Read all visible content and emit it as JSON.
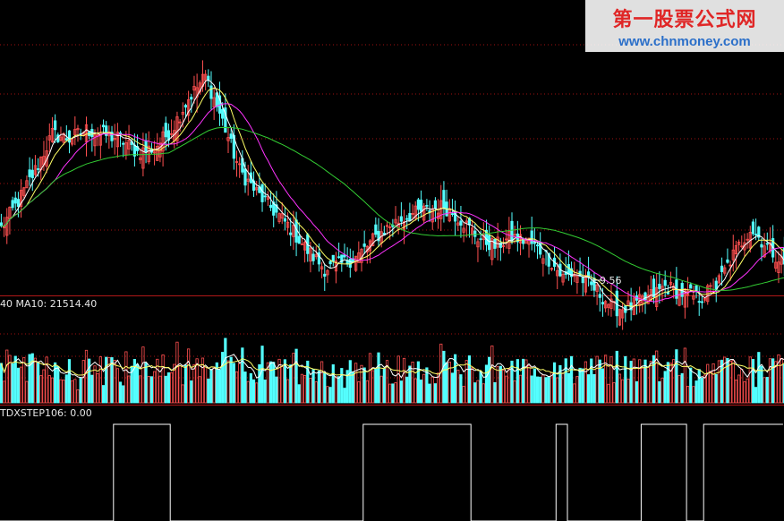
{
  "colors": {
    "up": "#ff5050",
    "down": "#54ffff",
    "ma_white": "#ffffff",
    "ma_yellow": "#ffff66",
    "ma_magenta": "#ff33ff",
    "ma_green": "#33cc33",
    "grid": "#a01010"
  },
  "price_panel": {
    "low_marker_label": "9.56"
  },
  "volume_panel": {
    "header": "40  MA10: 21514.40"
  },
  "step_panel": {
    "header": "TDXSTEP106: 0.00"
  },
  "watermark": {
    "title": "第一股票公式网",
    "url": "www.chnmoney.com"
  },
  "chart_data": {
    "type": "candlestick",
    "price_axis": {
      "ylim": [
        9.2,
        15.2
      ],
      "grid": true
    },
    "volume_axis": {
      "ylim": [
        0,
        60000
      ],
      "grid": true
    },
    "anchors": [
      [
        0,
        10.5
      ],
      [
        6,
        11.1
      ],
      [
        12,
        11.8
      ],
      [
        18,
        12.6
      ],
      [
        24,
        12.5
      ],
      [
        30,
        12.7
      ],
      [
        36,
        12.6
      ],
      [
        42,
        12.5
      ],
      [
        48,
        12.2
      ],
      [
        54,
        12.3
      ],
      [
        60,
        12.7
      ],
      [
        66,
        13.4
      ],
      [
        72,
        13.9
      ],
      [
        78,
        12.9
      ],
      [
        84,
        11.8
      ],
      [
        90,
        11.3
      ],
      [
        96,
        10.9
      ],
      [
        102,
        10.5
      ],
      [
        108,
        10.0
      ],
      [
        114,
        9.6
      ],
      [
        120,
        9.7
      ],
      [
        126,
        9.9
      ],
      [
        132,
        10.3
      ],
      [
        138,
        10.6
      ],
      [
        144,
        10.8
      ],
      [
        150,
        10.9
      ],
      [
        156,
        11.0
      ],
      [
        162,
        10.7
      ],
      [
        168,
        10.3
      ],
      [
        174,
        10.1
      ],
      [
        180,
        10.3
      ],
      [
        186,
        10.2
      ],
      [
        192,
        9.9
      ],
      [
        198,
        9.4
      ],
      [
        202,
        9.5
      ],
      [
        206,
        9.3
      ],
      [
        210,
        9.1
      ],
      [
        216,
        8.7
      ],
      [
        222,
        8.75
      ],
      [
        228,
        8.95
      ],
      [
        234,
        9.2
      ],
      [
        240,
        9.05
      ],
      [
        246,
        8.95
      ],
      [
        252,
        9.2
      ],
      [
        258,
        9.9
      ],
      [
        264,
        10.5
      ],
      [
        270,
        10.1
      ],
      [
        276,
        9.7
      ]
    ],
    "step_segments": [
      [
        0,
        40,
        0
      ],
      [
        40,
        60,
        1
      ],
      [
        60,
        128,
        0
      ],
      [
        128,
        166,
        1
      ],
      [
        166,
        196,
        0
      ],
      [
        196,
        200,
        1
      ],
      [
        200,
        226,
        0
      ],
      [
        226,
        242,
        1
      ],
      [
        242,
        248,
        0
      ],
      [
        248,
        276,
        1
      ]
    ],
    "low_point": {
      "index": 208,
      "value": 9.56
    }
  }
}
